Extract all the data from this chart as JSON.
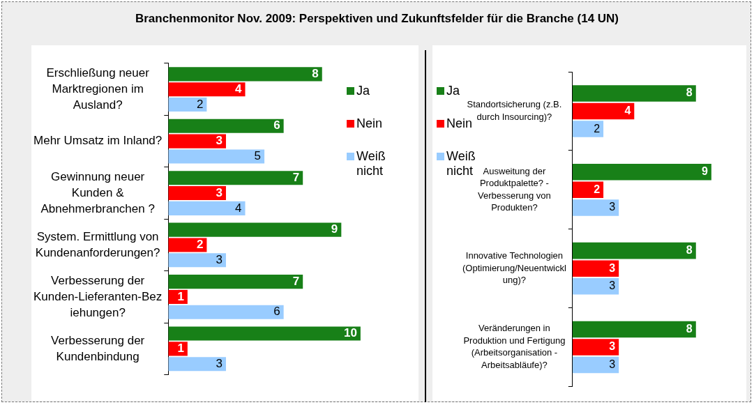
{
  "chart_data": [
    {
      "type": "bar",
      "orientation": "horizontal",
      "title": "Branchenmonitor Nov. 2009: Perspektiven und Zukunftsfelder für die Branche (14 UN)",
      "categories": [
        "Erschließung neuer Marktregionen im Ausland?",
        "Mehr Umsatz im Inland?",
        "Gewinnung neuer Kunden & Abnehmerbranchen ?",
        "System. Ermittlung von Kundenanforderungen?",
        "Verbesserung der Kunden-Lieferanten-Beziehungen?",
        "Verbesserung der Kundenbindung"
      ],
      "series": [
        {
          "name": "Ja",
          "color": "#188018",
          "values": [
            8,
            6,
            7,
            9,
            7,
            10
          ]
        },
        {
          "name": "Nein",
          "color": "#ff0000",
          "values": [
            4,
            3,
            3,
            2,
            1,
            1
          ]
        },
        {
          "name": "Weiß nicht",
          "color": "#99ccff",
          "values": [
            2,
            5,
            4,
            3,
            6,
            3
          ]
        }
      ],
      "data_labels": true,
      "legend": "right",
      "grid": false
    },
    {
      "type": "bar",
      "orientation": "horizontal",
      "categories": [
        "Standortsicherung (z.B. durch Insourcing)?",
        "Ausweitung der Produktpalette? - Verbesserung von Produkten?",
        "Innovative Technologien (Optimierung/Neuentwicklung)?",
        "Veränderungen in Produktion und Fertigung (Arbeitsorganisation - Arbeitsabläufe)?"
      ],
      "series": [
        {
          "name": "Ja",
          "color": "#188018",
          "values": [
            8,
            9,
            8,
            8
          ]
        },
        {
          "name": "Nein",
          "color": "#ff0000",
          "values": [
            4,
            2,
            3,
            3
          ]
        },
        {
          "name": "Weiß nicht",
          "color": "#99ccff",
          "values": [
            2,
            3,
            3,
            3
          ]
        }
      ],
      "data_labels": true,
      "legend": "left",
      "grid": false
    }
  ]
}
